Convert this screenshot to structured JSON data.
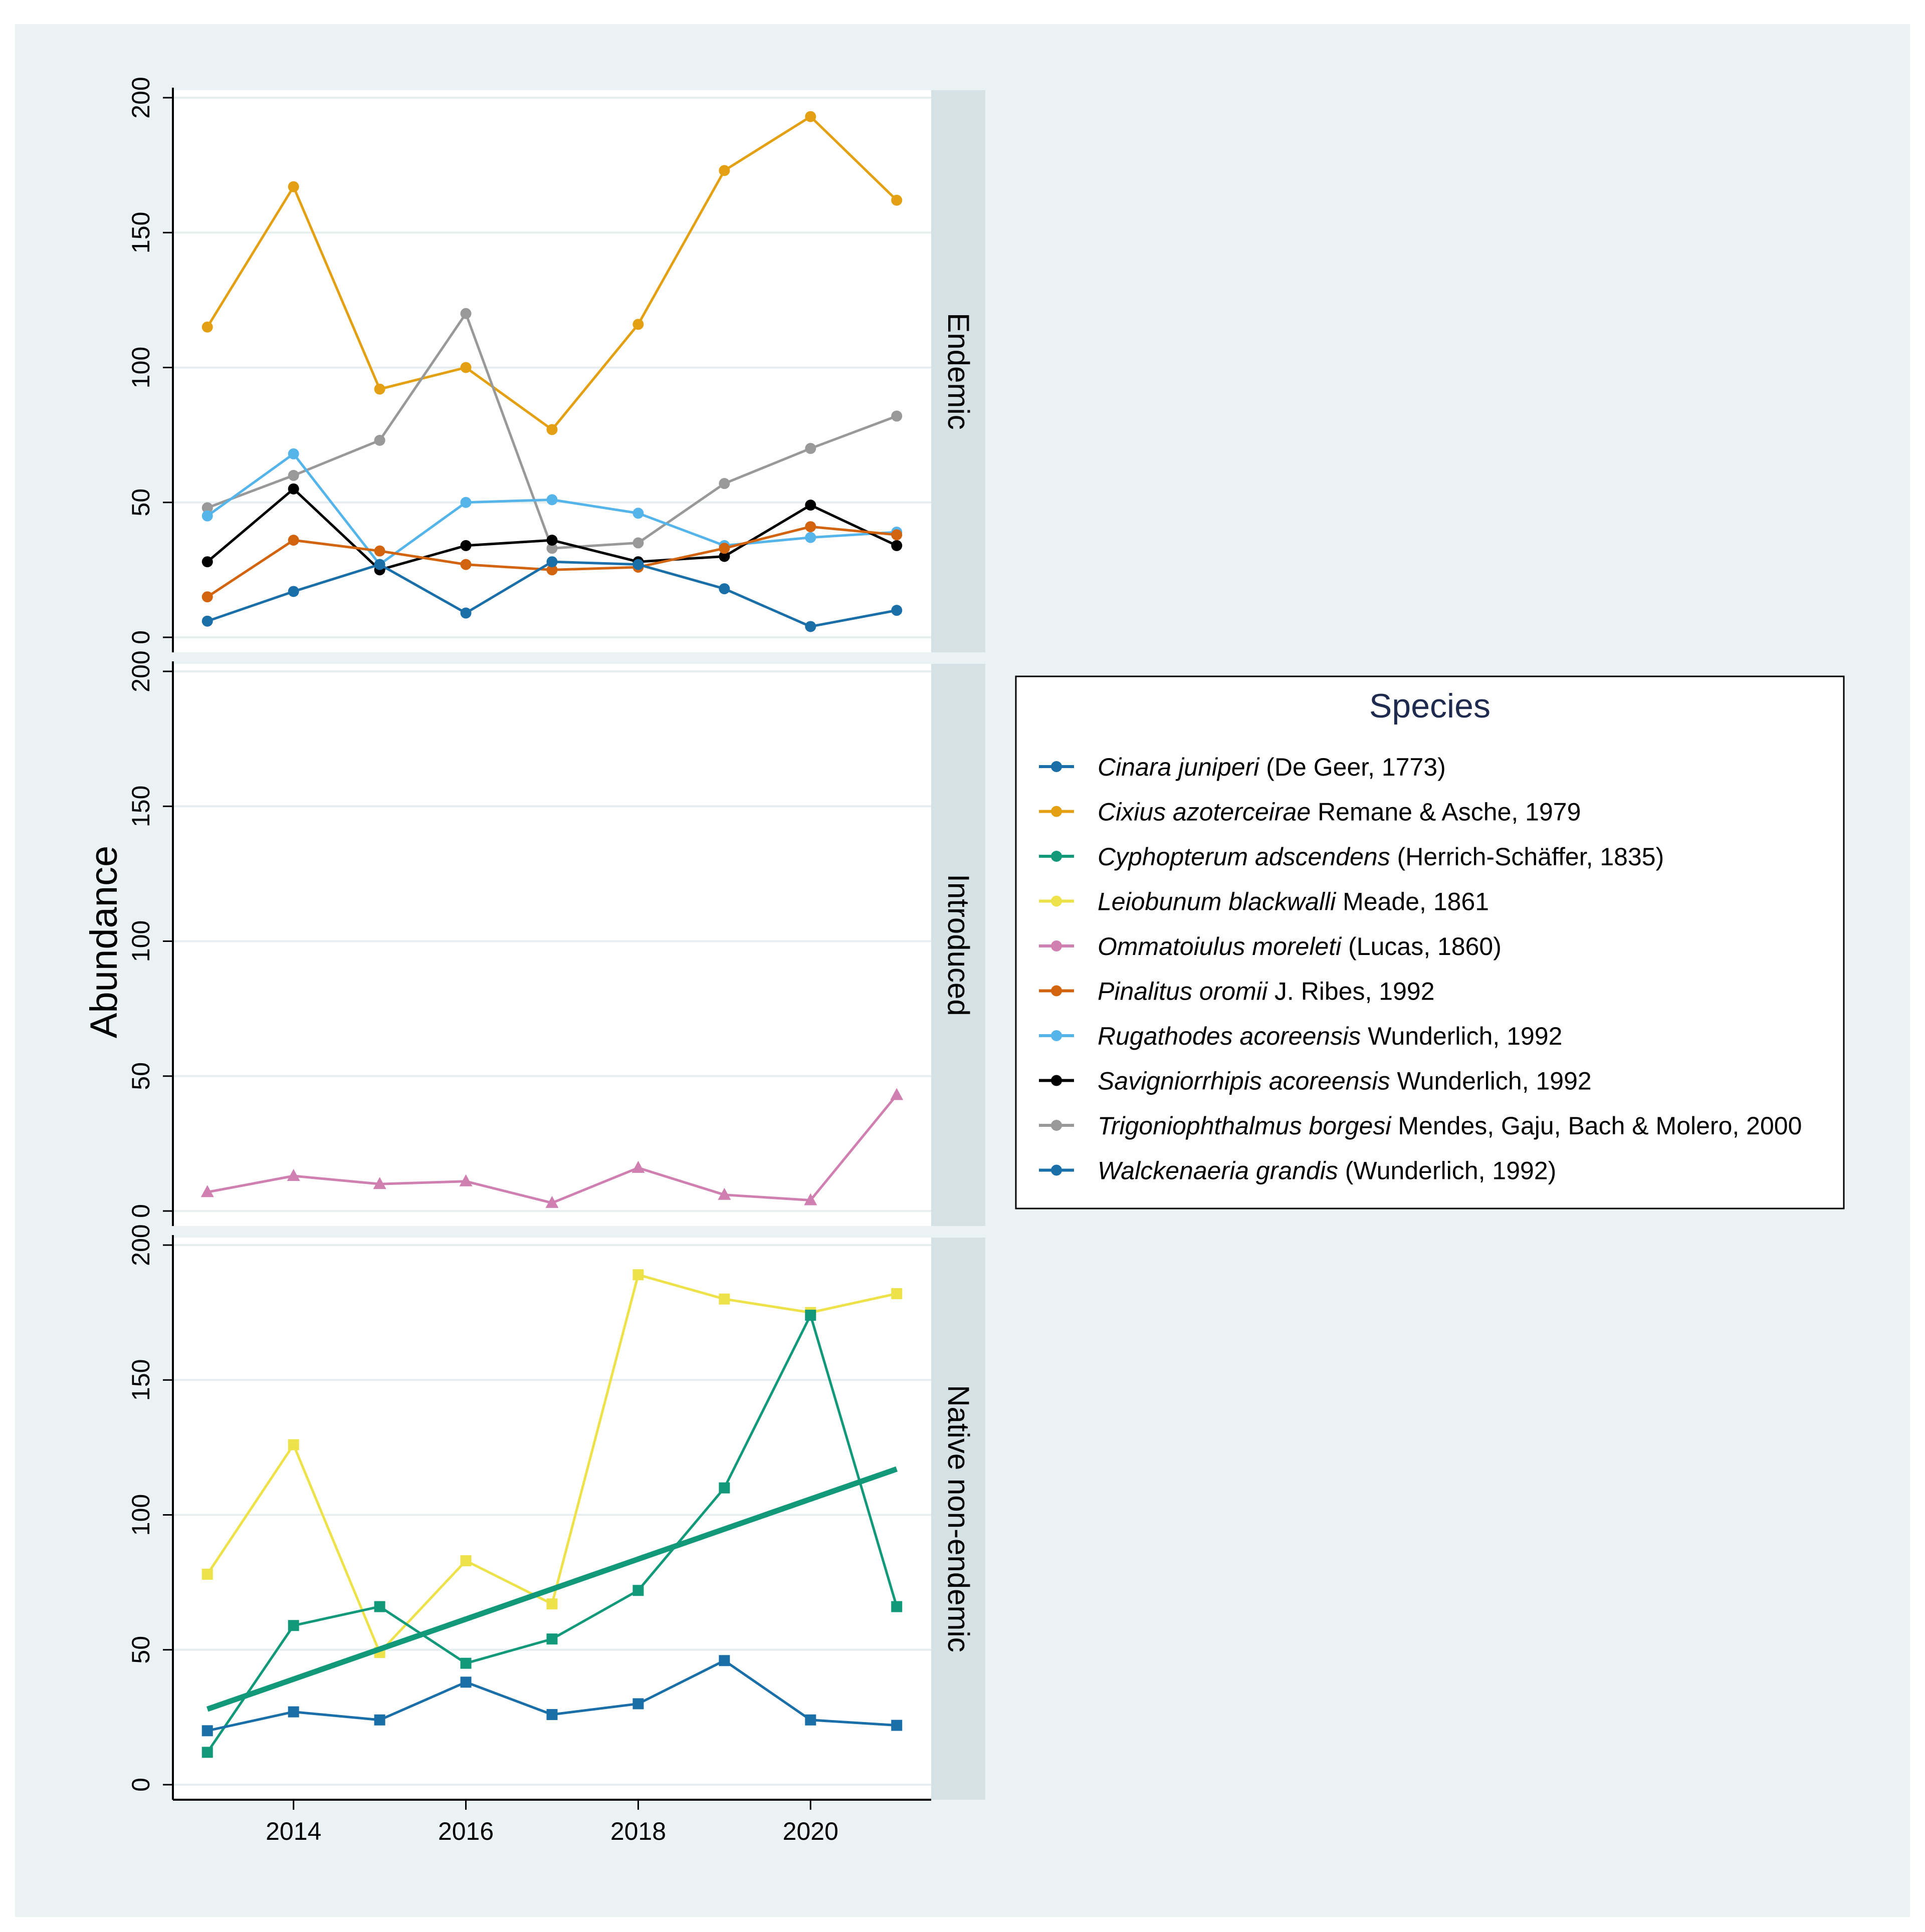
{
  "chart_data": {
    "type": "line",
    "ylabel": "Abundance",
    "x": [
      2013,
      2014,
      2015,
      2016,
      2017,
      2018,
      2019,
      2020,
      2021
    ],
    "xticks": [
      2014,
      2016,
      2018,
      2020
    ],
    "xlim": [
      2012.6,
      2021.4
    ],
    "ylim": [
      0,
      200
    ],
    "yticks": [
      0,
      50,
      100,
      150,
      200
    ],
    "grid": true,
    "legend": {
      "title": "Species",
      "placement": "right",
      "entries": [
        {
          "name": "Cinara juniperi",
          "author": "(De Geer, 1773)",
          "color": "#1a6fa8"
        },
        {
          "name": "Cixius azoterceirae",
          "author": "Remane & Asche, 1979",
          "color": "#e2a012"
        },
        {
          "name": "Cyphopterum adscendens",
          "author": "(Herrich-Schäffer, 1835)",
          "color": "#11997a"
        },
        {
          "name": "Leiobunum blackwalli",
          "author": "Meade, 1861",
          "color": "#ede24a"
        },
        {
          "name": "Ommatoiulus moreleti",
          "author": "(Lucas, 1860)",
          "color": "#cf7fb0"
        },
        {
          "name": "Pinalitus oromii",
          "author": "J. Ribes, 1992",
          "color": "#d2640f"
        },
        {
          "name": "Rugathodes acoreensis",
          "author": "Wunderlich, 1992",
          "color": "#55b4e9"
        },
        {
          "name": "Savigniorrhipis acoreensis",
          "author": "Wunderlich, 1992",
          "color": "#000000"
        },
        {
          "name": "Trigoniophthalmus borgesi",
          "author": "Mendes, Gaju, Bach & Molero, 2000",
          "color": "#999999"
        },
        {
          "name": "Walckenaeria grandis",
          "author": "(Wunderlich, 1992)",
          "color": "#1a6fa8"
        }
      ]
    },
    "panels": [
      {
        "label": "Endemic",
        "marker": "circle",
        "series": [
          {
            "name": "Cixius azoterceirae",
            "color": "#e2a012",
            "values": [
              115,
              167,
              92,
              100,
              77,
              116,
              173,
              193,
              162
            ]
          },
          {
            "name": "Trigoniophthalmus borgesi",
            "color": "#999999",
            "values": [
              48,
              60,
              73,
              120,
              33,
              35,
              57,
              70,
              82
            ]
          },
          {
            "name": "Rugathodes acoreensis",
            "color": "#55b4e9",
            "values": [
              45,
              68,
              27,
              50,
              51,
              46,
              34,
              37,
              39
            ]
          },
          {
            "name": "Savigniorrhipis acoreensis",
            "color": "#000000",
            "values": [
              28,
              55,
              25,
              34,
              36,
              28,
              30,
              49,
              34
            ]
          },
          {
            "name": "Pinalitus oromii",
            "color": "#d2640f",
            "values": [
              15,
              36,
              32,
              27,
              25,
              26,
              33,
              41,
              38
            ]
          },
          {
            "name": "Walckenaeria grandis",
            "color": "#1a6fa8",
            "values": [
              6,
              17,
              27,
              9,
              28,
              27,
              18,
              4,
              10
            ]
          }
        ]
      },
      {
        "label": "Introduced",
        "marker": "triangle",
        "series": [
          {
            "name": "Ommatoiulus moreleti",
            "color": "#cf7fb0",
            "values": [
              7,
              13,
              10,
              11,
              3,
              16,
              6,
              4,
              43
            ]
          }
        ]
      },
      {
        "label": "Native non-endemic",
        "marker": "square",
        "series": [
          {
            "name": "Leiobunum blackwalli",
            "color": "#ede24a",
            "values": [
              78,
              126,
              49,
              83,
              67,
              189,
              180,
              175,
              182
            ]
          },
          {
            "name": "Cyphopterum adscendens",
            "color": "#11997a",
            "values": [
              12,
              59,
              66,
              45,
              54,
              72,
              110,
              174,
              66
            ]
          },
          {
            "name": "Cinara juniperi",
            "color": "#1a6fa8",
            "values": [
              20,
              27,
              24,
              38,
              26,
              30,
              46,
              24,
              22
            ]
          }
        ],
        "trend": {
          "name": "Cyphopterum adscendens trend",
          "color": "#11997a",
          "values": [
            28,
            117
          ]
        }
      }
    ]
  }
}
